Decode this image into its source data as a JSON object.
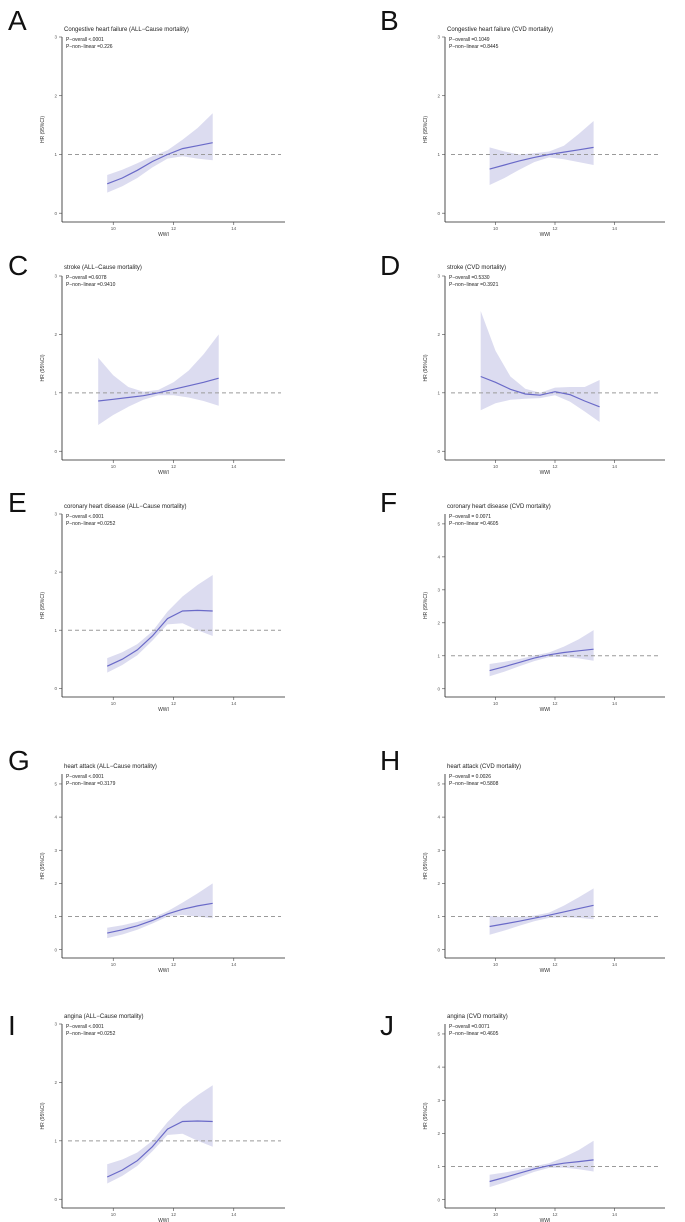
{
  "figure": {
    "colors": {
      "line": "#6a6ac8",
      "band": "#dcdcf0",
      "reference": "#9a9a9a",
      "axis": "#222222"
    }
  },
  "chart_data": [
    {
      "type": "line",
      "letter": "A",
      "title": "Congestive heart failure (ALL−Cause mortality)",
      "p_overall": "P−overall <.0001",
      "p_nonlinear": "P−non−linear =0.226",
      "xlabel": "WWI",
      "ylabel": "HR (95%CI)",
      "xlim": [
        8.3,
        15.7
      ],
      "ylim": [
        -0.15,
        3.0
      ],
      "xticks": [
        10,
        12,
        14
      ],
      "yticks": [
        0,
        1,
        2,
        3
      ],
      "reference": 1,
      "x": [
        9.8,
        10.3,
        10.8,
        11.3,
        11.8,
        12.3,
        12.8,
        13.3
      ],
      "hr": [
        0.5,
        0.6,
        0.73,
        0.88,
        1.0,
        1.1,
        1.15,
        1.2
      ],
      "lower": [
        0.35,
        0.46,
        0.6,
        0.78,
        0.93,
        0.97,
        0.93,
        0.9
      ],
      "upper": [
        0.65,
        0.74,
        0.85,
        0.97,
        1.07,
        1.25,
        1.45,
        1.7
      ]
    },
    {
      "type": "line",
      "letter": "B",
      "title": "Congestive heart failure (CVD mortality)",
      "p_overall": "P−overall =0.1049",
      "p_nonlinear": "P−non−linear =0.8445",
      "xlabel": "WWI",
      "ylabel": "HR (95%CI)",
      "xlim": [
        8.3,
        15.7
      ],
      "ylim": [
        -0.15,
        3.0
      ],
      "xticks": [
        10,
        12,
        14
      ],
      "yticks": [
        0,
        1,
        2,
        3
      ],
      "reference": 1,
      "x": [
        9.8,
        10.3,
        10.8,
        11.3,
        11.8,
        12.3,
        12.8,
        13.3
      ],
      "hr": [
        0.75,
        0.82,
        0.89,
        0.95,
        1.0,
        1.04,
        1.08,
        1.12
      ],
      "lower": [
        0.48,
        0.6,
        0.74,
        0.87,
        0.95,
        0.92,
        0.87,
        0.82
      ],
      "upper": [
        1.12,
        1.05,
        1.0,
        1.02,
        1.05,
        1.15,
        1.35,
        1.57
      ]
    },
    {
      "type": "line",
      "letter": "C",
      "title": "stroke (ALL−Cause mortality)",
      "p_overall": "P−overall =0.6078",
      "p_nonlinear": "P−non−linear =0.9410",
      "xlabel": "WWI",
      "ylabel": "HR (95%CI)",
      "xlim": [
        8.3,
        15.7
      ],
      "ylim": [
        -0.15,
        3.0
      ],
      "xticks": [
        10,
        12,
        14
      ],
      "yticks": [
        0,
        1,
        2,
        3
      ],
      "reference": 1,
      "x": [
        9.5,
        10.0,
        10.5,
        11.0,
        11.5,
        12.0,
        12.5,
        13.0,
        13.5
      ],
      "hr": [
        0.86,
        0.89,
        0.92,
        0.95,
        1.0,
        1.06,
        1.12,
        1.18,
        1.25
      ],
      "lower": [
        0.45,
        0.62,
        0.76,
        0.88,
        0.96,
        0.96,
        0.92,
        0.86,
        0.78
      ],
      "upper": [
        1.6,
        1.3,
        1.1,
        1.02,
        1.05,
        1.18,
        1.38,
        1.66,
        2.0
      ]
    },
    {
      "type": "line",
      "letter": "D",
      "title": "stroke (CVD mortality)",
      "p_overall": "P−overall =0.5330",
      "p_nonlinear": "P−non−linear =0.3921",
      "xlabel": "WWI",
      "ylabel": "HR (95%CI)",
      "xlim": [
        8.3,
        15.7
      ],
      "ylim": [
        -0.15,
        3.0
      ],
      "xticks": [
        10,
        12,
        14
      ],
      "yticks": [
        0,
        1,
        2,
        3
      ],
      "reference": 1,
      "x": [
        9.5,
        10.0,
        10.5,
        11.0,
        11.5,
        12.0,
        12.5,
        13.0,
        13.5
      ],
      "hr": [
        1.28,
        1.18,
        1.06,
        0.98,
        0.96,
        1.02,
        0.97,
        0.86,
        0.76
      ],
      "lower": [
        0.7,
        0.82,
        0.88,
        0.9,
        0.91,
        0.96,
        0.85,
        0.68,
        0.5
      ],
      "upper": [
        2.4,
        1.72,
        1.28,
        1.07,
        1.0,
        1.09,
        1.1,
        1.1,
        1.22
      ]
    },
    {
      "type": "line",
      "letter": "E",
      "title": "coronary heart disease (ALL−Cause mortality)",
      "p_overall": "P−overall <.0001",
      "p_nonlinear": "P−non−linear =0.0252",
      "xlabel": "WWI",
      "ylabel": "HR (95%CI)",
      "xlim": [
        8.3,
        15.7
      ],
      "ylim": [
        -0.15,
        3.0
      ],
      "xticks": [
        10,
        12,
        14
      ],
      "yticks": [
        0,
        1,
        2,
        3
      ],
      "reference": 1,
      "x": [
        9.8,
        10.3,
        10.8,
        11.3,
        11.8,
        12.3,
        12.8,
        13.3
      ],
      "hr": [
        0.38,
        0.5,
        0.66,
        0.9,
        1.2,
        1.33,
        1.34,
        1.33
      ],
      "lower": [
        0.27,
        0.4,
        0.57,
        0.82,
        1.1,
        1.12,
        1.0,
        0.9
      ],
      "upper": [
        0.52,
        0.62,
        0.76,
        0.98,
        1.32,
        1.58,
        1.78,
        1.95
      ]
    },
    {
      "type": "line",
      "letter": "F",
      "title": "coronary heart disease (CVD mortality)",
      "p_overall": "P−overall = 0.0071",
      "p_nonlinear": "P−non−linear =0.4605",
      "xlabel": "WWI",
      "ylabel": "HR (95%CI)",
      "xlim": [
        8.3,
        15.7
      ],
      "ylim": [
        -0.25,
        5.3
      ],
      "xticks": [
        10,
        12,
        14
      ],
      "yticks": [
        0,
        1,
        2,
        3,
        4,
        5
      ],
      "reference": 1,
      "x": [
        9.8,
        10.3,
        10.8,
        11.3,
        11.8,
        12.3,
        12.8,
        13.3
      ],
      "hr": [
        0.55,
        0.67,
        0.8,
        0.93,
        1.03,
        1.1,
        1.15,
        1.2
      ],
      "lower": [
        0.38,
        0.52,
        0.68,
        0.84,
        0.96,
        0.97,
        0.92,
        0.85
      ],
      "upper": [
        0.75,
        0.82,
        0.9,
        1.01,
        1.1,
        1.28,
        1.5,
        1.78
      ]
    },
    {
      "type": "line",
      "letter": "G",
      "title": "heart attack (ALL−Cause mortality)",
      "p_overall": "P−overall <.0001",
      "p_nonlinear": "P−non−linear =0.3179",
      "xlabel": "WWI",
      "ylabel": "HR (95%CI)",
      "xlim": [
        8.3,
        15.7
      ],
      "ylim": [
        -0.25,
        5.3
      ],
      "xticks": [
        10,
        12,
        14
      ],
      "yticks": [
        0,
        1,
        2,
        3,
        4,
        5
      ],
      "reference": 1,
      "x": [
        9.8,
        10.3,
        10.8,
        11.3,
        11.8,
        12.3,
        12.8,
        13.3
      ],
      "hr": [
        0.5,
        0.6,
        0.72,
        0.88,
        1.08,
        1.22,
        1.32,
        1.4
      ],
      "lower": [
        0.35,
        0.46,
        0.6,
        0.79,
        1.0,
        1.05,
        1.0,
        0.95
      ],
      "upper": [
        0.66,
        0.74,
        0.84,
        0.96,
        1.16,
        1.42,
        1.7,
        2.0
      ]
    },
    {
      "type": "line",
      "letter": "H",
      "title": "heart attack (CVD mortality)",
      "p_overall": "P−overall = 0.0026",
      "p_nonlinear": "P−non−linear =0.5808",
      "xlabel": "WWI",
      "ylabel": "HR (95%CI)",
      "xlim": [
        8.3,
        15.7
      ],
      "ylim": [
        -0.25,
        5.3
      ],
      "xticks": [
        10,
        12,
        14
      ],
      "yticks": [
        0,
        1,
        2,
        3,
        4,
        5
      ],
      "reference": 1,
      "x": [
        9.8,
        10.3,
        10.8,
        11.3,
        11.8,
        12.3,
        12.8,
        13.3
      ],
      "hr": [
        0.7,
        0.78,
        0.86,
        0.95,
        1.04,
        1.14,
        1.24,
        1.34
      ],
      "lower": [
        0.45,
        0.58,
        0.72,
        0.86,
        0.96,
        0.98,
        0.96,
        0.92
      ],
      "upper": [
        1.02,
        0.98,
        0.98,
        1.03,
        1.12,
        1.33,
        1.58,
        1.85
      ]
    },
    {
      "type": "line",
      "letter": "I",
      "title": "angina (ALL−Cause mortality)",
      "p_overall": "P−overall <.0001",
      "p_nonlinear": "P−non−linear =0.0252",
      "xlabel": "WWI",
      "ylabel": "HR (95%CI)",
      "xlim": [
        8.3,
        15.7
      ],
      "ylim": [
        -0.15,
        3.0
      ],
      "xticks": [
        10,
        12,
        14
      ],
      "yticks": [
        0,
        1,
        2,
        3
      ],
      "reference": 1,
      "x": [
        9.8,
        10.3,
        10.8,
        11.3,
        11.8,
        12.3,
        12.8,
        13.3
      ],
      "hr": [
        0.38,
        0.5,
        0.66,
        0.9,
        1.2,
        1.33,
        1.34,
        1.33
      ],
      "lower": [
        0.27,
        0.4,
        0.57,
        0.82,
        1.1,
        1.12,
        1.0,
        0.9
      ],
      "upper": [
        0.6,
        0.68,
        0.8,
        1.0,
        1.32,
        1.58,
        1.78,
        1.95
      ]
    },
    {
      "type": "line",
      "letter": "J",
      "title": "angina (CVD mortality)",
      "p_overall": "P−overall =0.0071",
      "p_nonlinear": "P−non−linear =0.4605",
      "xlabel": "WWI",
      "ylabel": "HR (95%CI)",
      "xlim": [
        8.3,
        15.7
      ],
      "ylim": [
        -0.25,
        5.3
      ],
      "xticks": [
        10,
        12,
        14
      ],
      "yticks": [
        0,
        1,
        2,
        3,
        4,
        5
      ],
      "reference": 1,
      "x": [
        9.8,
        10.3,
        10.8,
        11.3,
        11.8,
        12.3,
        12.8,
        13.3
      ],
      "hr": [
        0.55,
        0.67,
        0.8,
        0.93,
        1.03,
        1.1,
        1.15,
        1.2
      ],
      "lower": [
        0.38,
        0.52,
        0.68,
        0.84,
        0.96,
        0.97,
        0.92,
        0.85
      ],
      "upper": [
        0.75,
        0.82,
        0.9,
        1.01,
        1.1,
        1.28,
        1.5,
        1.78
      ]
    }
  ]
}
